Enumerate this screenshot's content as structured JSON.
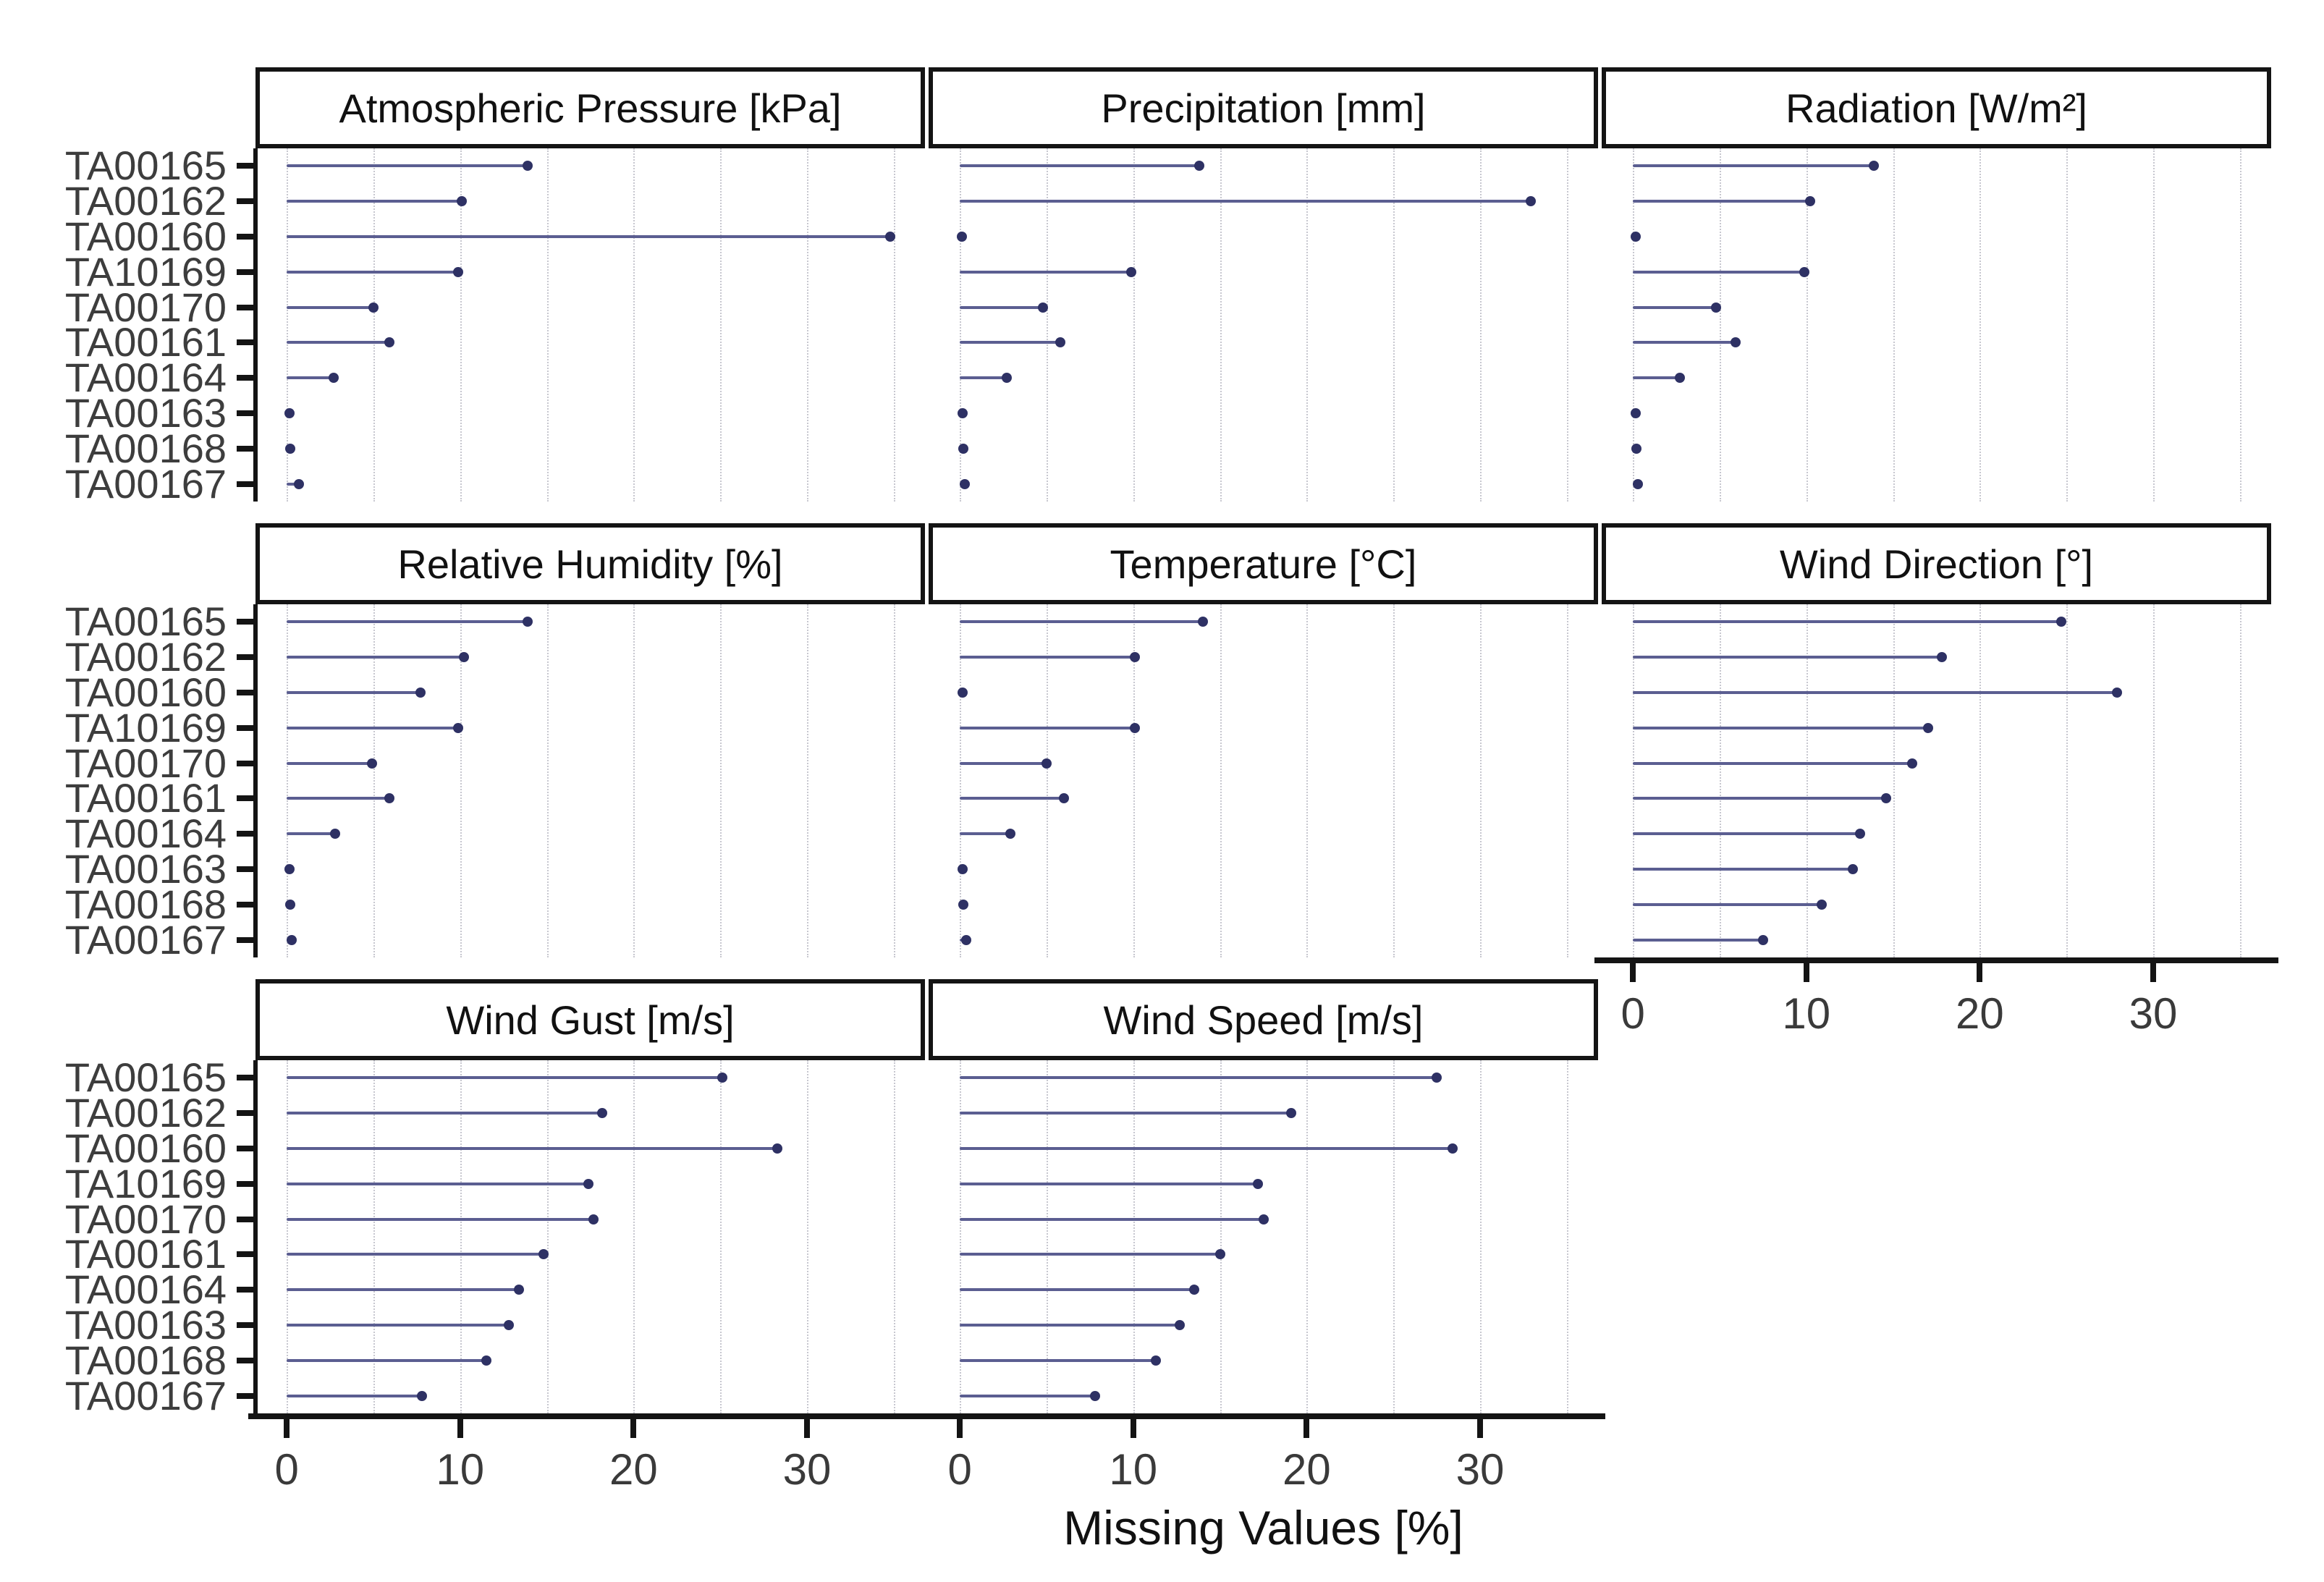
{
  "chart_data": {
    "type": "bar",
    "style": "horizontal-lollipop-small-multiples",
    "title": "",
    "xlabel": "Missing Values [%]",
    "ylabel": "",
    "legend": "none",
    "grid": "vertical-dotted-minor-every-5",
    "xlim": [
      -1.8,
      36.8
    ],
    "x_ticks": [
      0,
      10,
      20,
      30
    ],
    "x_gridlines": [
      0,
      5,
      10,
      15,
      20,
      25,
      30,
      35
    ],
    "facet_grid_columns": 3,
    "categories": [
      "TA00165",
      "TA00162",
      "TA00160",
      "TA10169",
      "TA00170",
      "TA00161",
      "TA00164",
      "TA00163",
      "TA00168",
      "TA00167"
    ],
    "facets": [
      {
        "title": "Atmospheric Pressure [kPa]",
        "values": [
          13.9,
          10.1,
          34.8,
          9.9,
          5.0,
          5.9,
          2.7,
          0.15,
          0.2,
          0.7
        ]
      },
      {
        "title": "Precipitation [mm]",
        "values": [
          13.8,
          32.9,
          0.1,
          9.9,
          4.8,
          5.8,
          2.7,
          0.15,
          0.2,
          0.3
        ]
      },
      {
        "title": "Radiation [W/m²]",
        "values": [
          13.9,
          10.2,
          0.15,
          9.9,
          4.8,
          5.9,
          2.7,
          0.15,
          0.2,
          0.3
        ]
      },
      {
        "title": "Relative Humidity [%]",
        "values": [
          13.9,
          10.2,
          7.7,
          9.9,
          4.9,
          5.9,
          2.8,
          0.15,
          0.2,
          0.3
        ]
      },
      {
        "title": "Temperature [°C]",
        "values": [
          14.0,
          10.1,
          0.15,
          10.1,
          5.0,
          6.0,
          2.9,
          0.15,
          0.2,
          0.35
        ]
      },
      {
        "title": "Wind Direction [°]",
        "values": [
          24.7,
          17.8,
          27.9,
          17.0,
          16.1,
          14.6,
          13.1,
          12.7,
          10.9,
          7.5
        ]
      },
      {
        "title": "Wind Gust [m/s]",
        "values": [
          25.1,
          18.2,
          28.3,
          17.4,
          17.7,
          14.8,
          13.4,
          12.8,
          11.5,
          7.8
        ]
      },
      {
        "title": "Wind Speed [m/s]",
        "values": [
          27.5,
          19.1,
          28.4,
          17.2,
          17.5,
          15.0,
          13.5,
          12.7,
          11.3,
          7.8
        ]
      }
    ],
    "colors": {
      "lollipop_segment": "#5b5e91",
      "lollipop_point": "#2e3164",
      "axis_line": "#141414",
      "tick_label": "#3a3a3a",
      "category_label": "#3d3d3d",
      "strip_border": "#141414",
      "strip_background": "#ffffff",
      "strip_text": "#111111",
      "gridline": "#c7c7cf",
      "background": "#ffffff",
      "axis_title": "#111111"
    }
  }
}
